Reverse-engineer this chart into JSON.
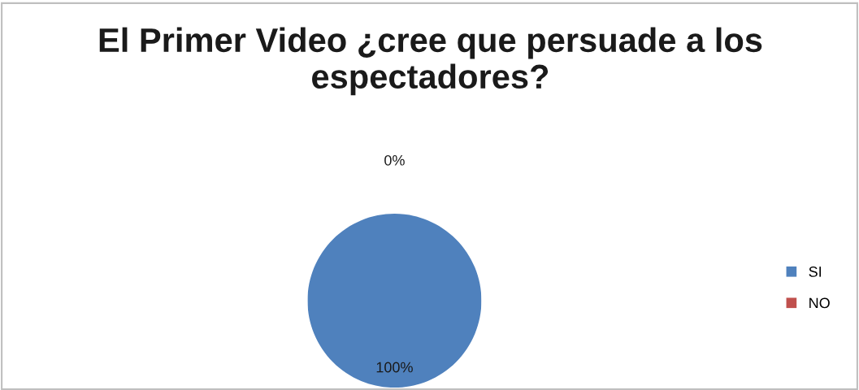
{
  "chart_data": {
    "type": "pie",
    "title": "El Primer Video ¿cree que persuade a los espectadores?",
    "categories": [
      "SI",
      "NO"
    ],
    "values": [
      100,
      0
    ],
    "colors": [
      "#4f81bd",
      "#c0504d"
    ],
    "value_labels": [
      "100%",
      "0%"
    ],
    "legend": "right"
  }
}
